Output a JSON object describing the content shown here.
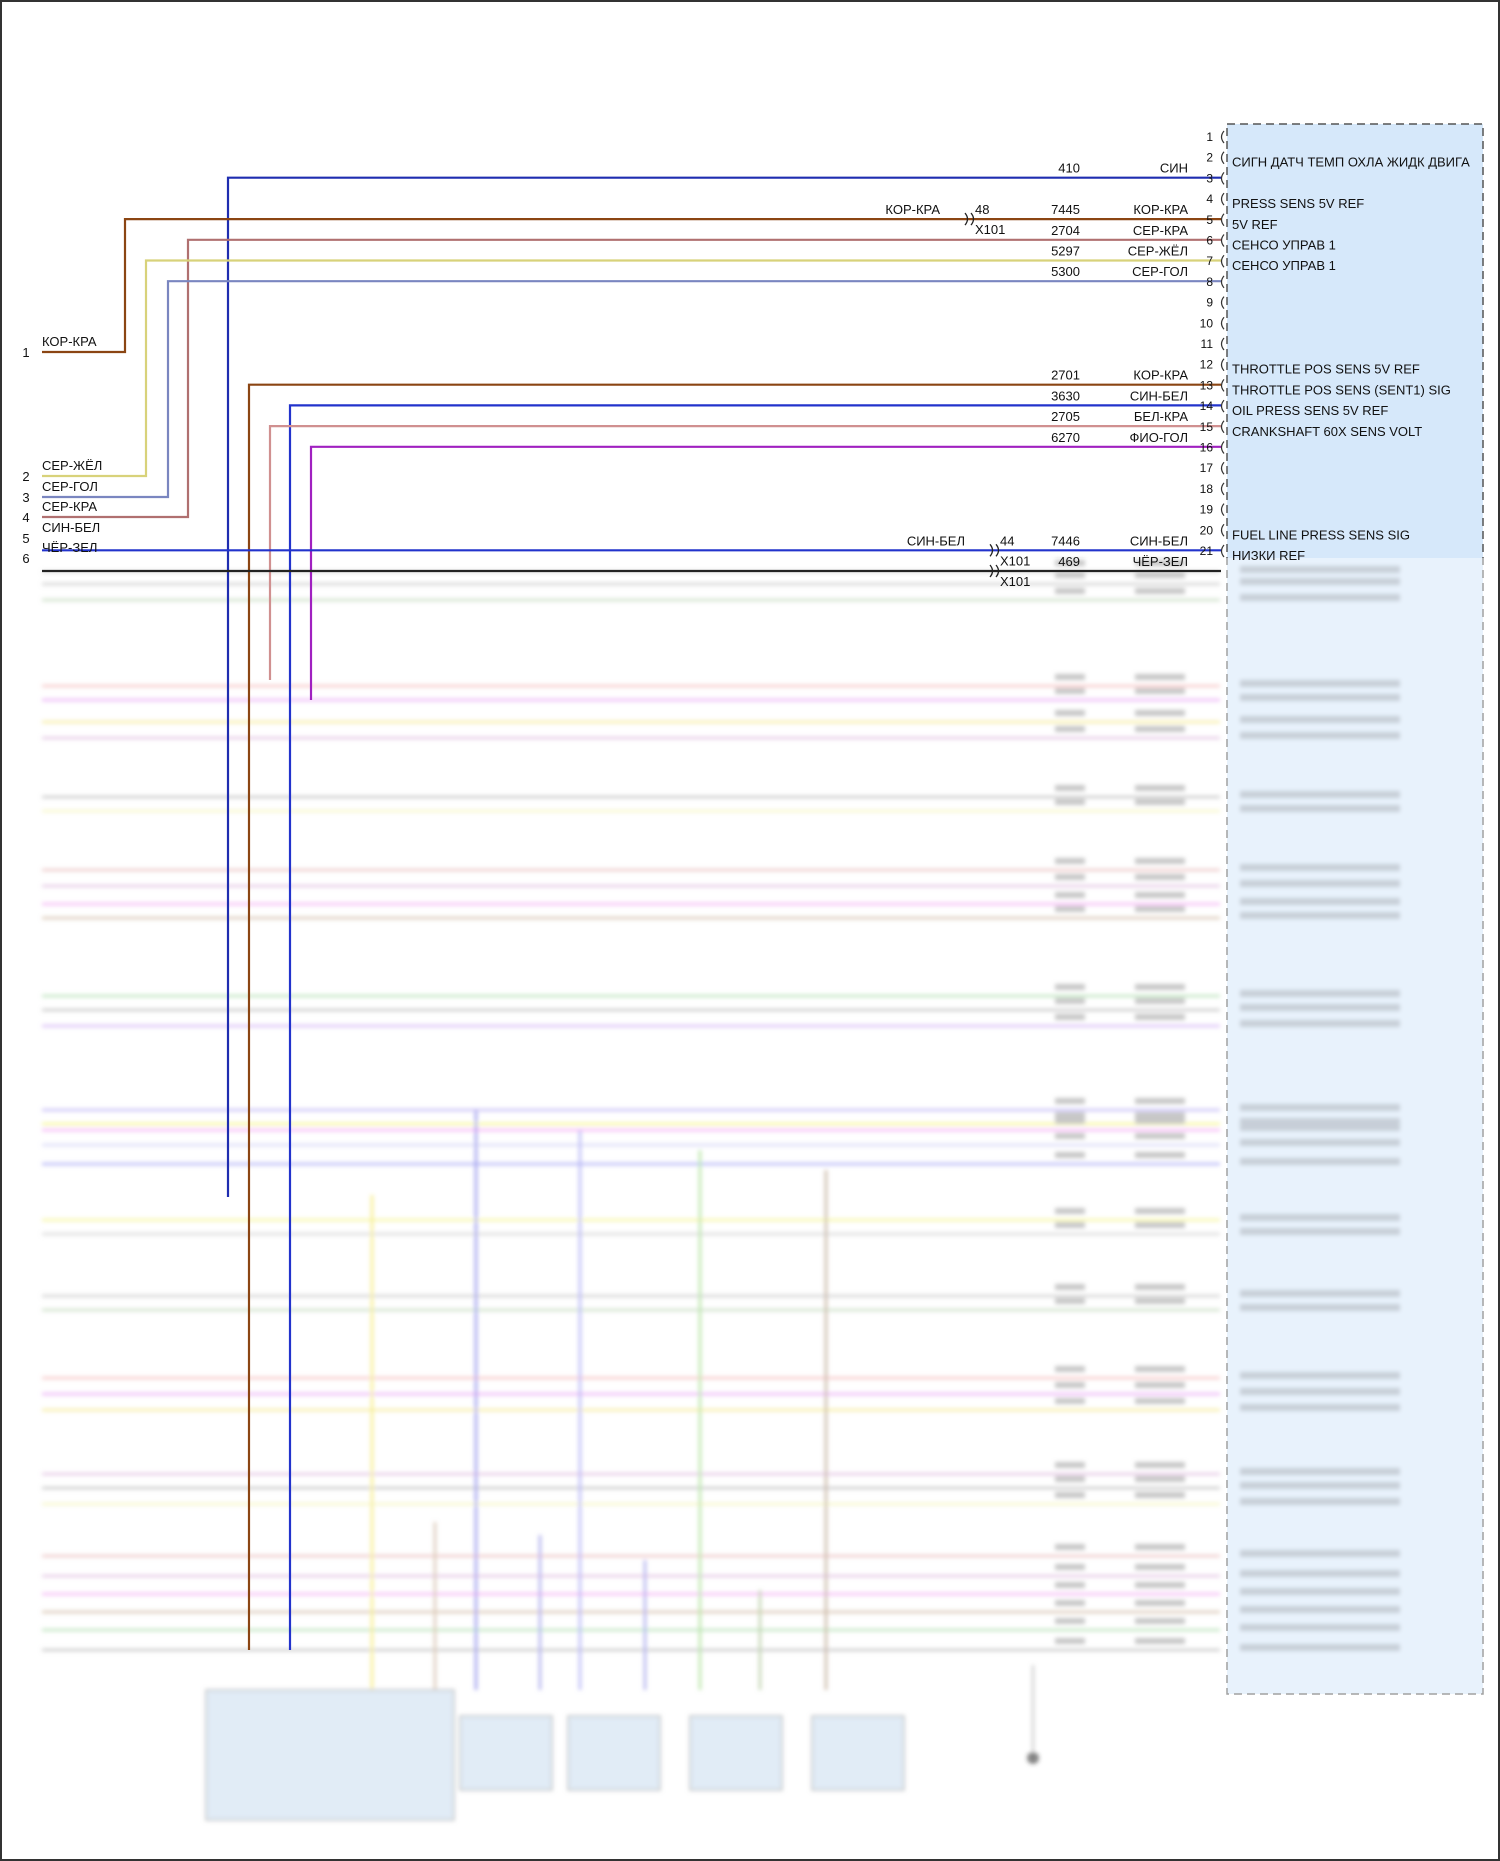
{
  "ecm_pins": [
    {
      "pin": "1",
      "label": ""
    },
    {
      "pin": "2",
      "label": "СИГН ДАТЧ ТЕМП ОХЛА ЖИДК ДВИГА"
    },
    {
      "pin": "3",
      "label": ""
    },
    {
      "pin": "4",
      "label": "PRESS SENS 5V REF"
    },
    {
      "pin": "5",
      "label": "5V REF"
    },
    {
      "pin": "6",
      "label": "СЕНСО УПРАВ 1"
    },
    {
      "pin": "7",
      "label": "СЕНСО УПРАВ 1"
    },
    {
      "pin": "8",
      "label": ""
    },
    {
      "pin": "9",
      "label": ""
    },
    {
      "pin": "10",
      "label": ""
    },
    {
      "pin": "11",
      "label": ""
    },
    {
      "pin": "12",
      "label": "THROTTLE POS SENS 5V REF"
    },
    {
      "pin": "13",
      "label": "THROTTLE POS SENS (SENT1) SIG"
    },
    {
      "pin": "14",
      "label": "OIL PRESS SENS 5V REF"
    },
    {
      "pin": "15",
      "label": "CRANKSHAFT 60X SENS VOLT"
    },
    {
      "pin": "16",
      "label": ""
    },
    {
      "pin": "17",
      "label": ""
    },
    {
      "pin": "18",
      "label": ""
    },
    {
      "pin": "19",
      "label": ""
    },
    {
      "pin": "20",
      "label": "FUEL LINE PRESS SENS SIG"
    },
    {
      "pin": "21",
      "label": "НИЗКИ REF"
    }
  ],
  "wires": [
    {
      "pin": "2",
      "circuit": "410",
      "color_name": "СИН",
      "color": "#1f2db0"
    },
    {
      "pin": "4",
      "circuit": "7445",
      "color_name": "КОР-КРА",
      "color": "#8b4513",
      "connector_pin": "48",
      "connector": "X101",
      "left_color_name": "КОР-КРА"
    },
    {
      "pin": "5",
      "circuit": "2704",
      "color_name": "СЕР-КРА",
      "color": "#b07070"
    },
    {
      "pin": "6",
      "circuit": "5297",
      "color_name": "СЕР-ЖЁЛ",
      "color": "#d8d27a"
    },
    {
      "pin": "7",
      "circuit": "5300",
      "color_name": "СЕР-ГОЛ",
      "color": "#7a86c0"
    },
    {
      "pin": "12",
      "circuit": "2701",
      "color_name": "КОР-КРА",
      "color": "#8b4513"
    },
    {
      "pin": "13",
      "circuit": "3630",
      "color_name": "СИН-БЕЛ",
      "color": "#2233cc"
    },
    {
      "pin": "14",
      "circuit": "2705",
      "color_name": "БЕЛ-КРА",
      "color": "#d09090"
    },
    {
      "pin": "15",
      "circuit": "6270",
      "color_name": "ФИО-ГОЛ",
      "color": "#a020c0"
    },
    {
      "pin": "20",
      "circuit": "7446",
      "color_name": "СИН-БЕЛ",
      "color": "#2233cc",
      "connector_pin": "44",
      "connector": "X101",
      "left_color_name": "СИН-БЕЛ"
    },
    {
      "pin": "21",
      "circuit": "469",
      "color_name": "ЧЁР-ЗЕЛ",
      "color": "#222222",
      "connector": "X101"
    }
  ],
  "left_terminals": [
    {
      "num": "1",
      "color_name": "КОР-КРА"
    },
    {
      "num": "2",
      "color_name": "СЕР-ЖЁЛ"
    },
    {
      "num": "3",
      "color_name": "СЕР-ГОЛ"
    },
    {
      "num": "4",
      "color_name": "СЕР-КРА"
    },
    {
      "num": "5",
      "color_name": "СИН-БЕЛ"
    },
    {
      "num": "6",
      "color_name": "ЧЁР-ЗЕЛ"
    }
  ],
  "blurred_wire_colors": [
    "#c0c0c0",
    "#b0b0b0",
    "#a8c8a0",
    "#f0a0a0",
    "#e080f0",
    "#f0e060",
    "#d0a0d0",
    "#a0a0a0",
    "#f0f0a0",
    "#e0a0a0",
    "#d0a0d0",
    "#ee88ee",
    "#c0a080",
    "#90d090",
    "#a0a0a0",
    "#c090f0",
    "#a090f0",
    "#f0f040",
    "#f080f0",
    "#c0c0f0",
    "#8080f0",
    "#f0f060"
  ],
  "colors": {
    "ecm_fill": "#d6e8fa",
    "background": "#ffffff"
  }
}
